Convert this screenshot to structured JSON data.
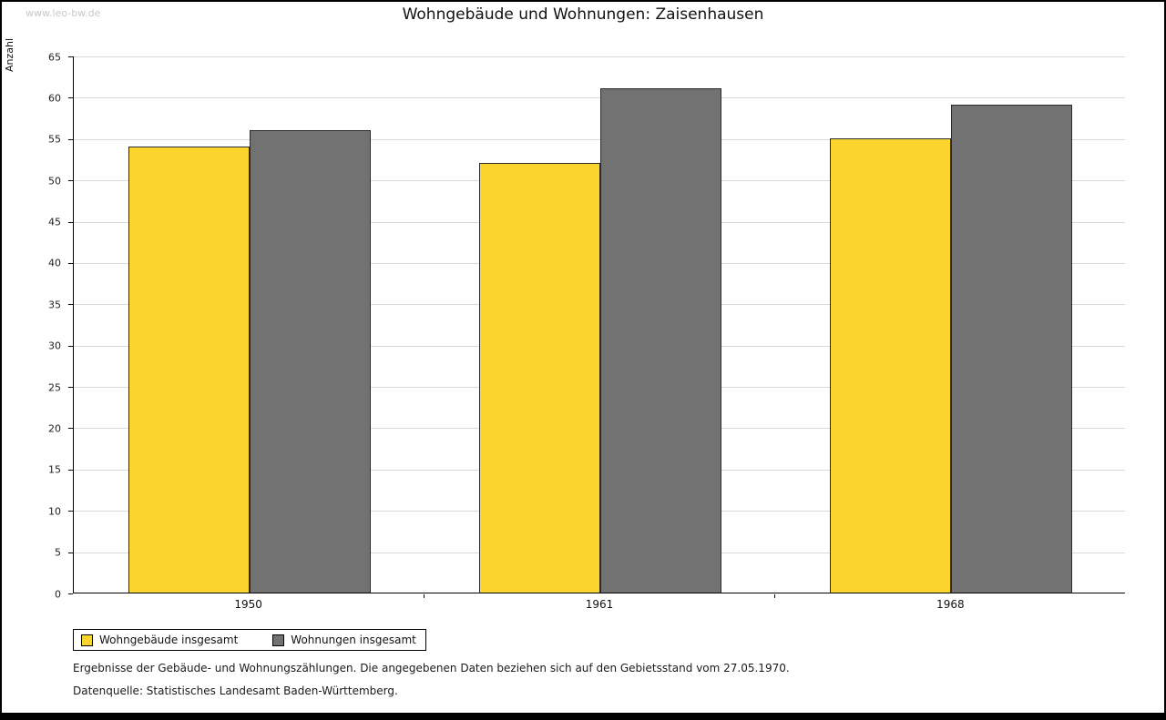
{
  "watermark": "www.leo-bw.de",
  "title": "Wohngebäude und Wohnungen: Zaisenhausen",
  "chart_data": {
    "type": "bar",
    "categories": [
      "1950",
      "1961",
      "1968"
    ],
    "series": [
      {
        "name": "Wohngebäude insgesamt",
        "color": "#FCD42E",
        "values": [
          54,
          52,
          55
        ]
      },
      {
        "name": "Wohnungen insgesamt",
        "color": "#727272",
        "values": [
          56,
          61,
          59
        ]
      }
    ],
    "title": "Wohngebäude und Wohnungen: Zaisenhausen",
    "xlabel": "",
    "ylabel": "Anzahl",
    "ylim": [
      0,
      65
    ],
    "ytick_step": 5,
    "grid": true,
    "legend_position": "bottom-left"
  },
  "footnotes": [
    "Ergebnisse der Gebäude- und Wohnungszählungen. Die angegebenen Daten beziehen sich auf den Gebietsstand vom 27.05.1970.",
    "Datenquelle: Statistisches Landesamt Baden-Württemberg."
  ]
}
